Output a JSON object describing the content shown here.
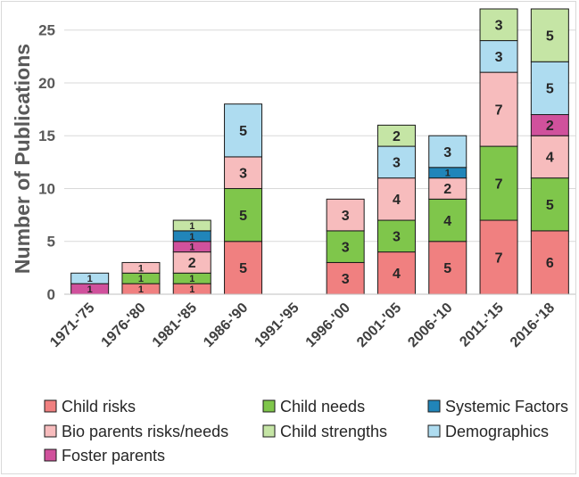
{
  "chart_data": {
    "type": "bar",
    "stacked": true,
    "title": "",
    "xlabel": "",
    "ylabel": "Number of Publications",
    "ylim": [
      0,
      27
    ],
    "yticks": [
      0,
      5,
      10,
      15,
      20,
      25
    ],
    "categories": [
      "1971-'75",
      "1976-'80",
      "1981-'85",
      "1986-'90",
      "1991-'95",
      "1996-'00",
      "2001-'05",
      "2006-'10",
      "2011-'15",
      "2016-'18"
    ],
    "series": [
      {
        "name": "Child risks",
        "color": "#f08080",
        "values": [
          0,
          1,
          1,
          5,
          0,
          3,
          4,
          5,
          7,
          6
        ]
      },
      {
        "name": "Child needs",
        "color": "#7fc64b",
        "values": [
          0,
          1,
          1,
          5,
          0,
          3,
          3,
          4,
          7,
          5
        ]
      },
      {
        "name": "Bio parents risks/needs",
        "color": "#f7bcbd",
        "values": [
          0,
          1,
          2,
          3,
          0,
          3,
          4,
          2,
          7,
          4
        ]
      },
      {
        "name": "Foster parents",
        "color": "#d0519c",
        "values": [
          1,
          0,
          1,
          0,
          0,
          0,
          0,
          0,
          0,
          2
        ]
      },
      {
        "name": "Systemic Factors",
        "color": "#2185b9",
        "values": [
          0,
          0,
          1,
          0,
          0,
          0,
          0,
          1,
          0,
          0
        ]
      },
      {
        "name": "Demographics",
        "color": "#aedcf0",
        "values": [
          1,
          0,
          0,
          5,
          0,
          0,
          3,
          3,
          3,
          5
        ]
      },
      {
        "name": "Child strengths",
        "color": "#c5e5a5",
        "values": [
          0,
          0,
          1,
          0,
          0,
          0,
          2,
          0,
          3,
          5
        ]
      }
    ],
    "legend": {
      "placement": "bottom",
      "order": [
        "Child risks",
        "Child needs",
        "Systemic Factors",
        "Bio parents risks/needs",
        "Child strengths",
        "Demographics",
        "Foster parents"
      ]
    },
    "grid": true
  }
}
